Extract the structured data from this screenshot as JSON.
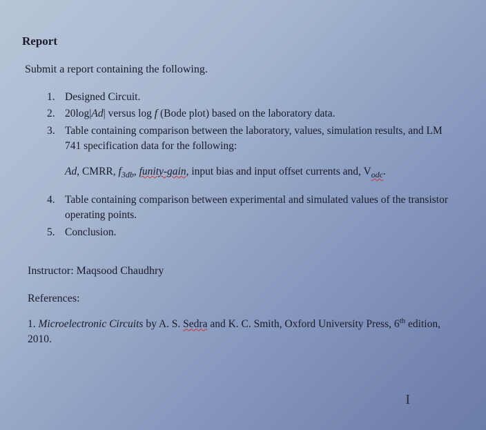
{
  "heading": "Report",
  "intro": "Submit a report containing the following.",
  "items": [
    {
      "num": "1.",
      "text_parts": [
        {
          "t": "Designed Circuit.",
          "style": ""
        }
      ]
    },
    {
      "num": "2.",
      "text_parts": [
        {
          "t": "20log|",
          "style": ""
        },
        {
          "t": "Ad",
          "style": "italic"
        },
        {
          "t": "| versus log ",
          "style": ""
        },
        {
          "t": "f",
          "style": "italic"
        },
        {
          "t": " (Bode plot) based on the laboratory data.",
          "style": ""
        }
      ]
    },
    {
      "num": "3.",
      "text_parts": [
        {
          "t": "Table containing comparison between the laboratory, values, simulation results, and LM 741 specification data for the following:",
          "style": ""
        }
      ]
    }
  ],
  "subline_parts": [
    {
      "t": "Ad",
      "style": "italic"
    },
    {
      "t": ", CMRR, ",
      "style": ""
    },
    {
      "t": "f",
      "style": "italic"
    },
    {
      "t": "3db",
      "style": "sub-italic"
    },
    {
      "t": ", ",
      "style": ""
    },
    {
      "t": "funity-gain",
      "style": "italic red-underline"
    },
    {
      "t": ", input bias and input offset currents and, V",
      "style": ""
    },
    {
      "t": "odc",
      "style": "sub-italic red-underline"
    },
    {
      "t": ".",
      "style": ""
    }
  ],
  "items2": [
    {
      "num": "4.",
      "text_parts": [
        {
          "t": "Table containing comparison between experimental and simulated values of the transistor operating points.",
          "style": ""
        }
      ]
    },
    {
      "num": "5.",
      "text_parts": [
        {
          "t": "Conclusion.",
          "style": ""
        }
      ]
    }
  ],
  "instructor_label": "Instructor: ",
  "instructor_name": "Maqsood Chaudhry",
  "references_label": "References:",
  "reference_parts": [
    {
      "t": "1. ",
      "style": ""
    },
    {
      "t": "Microelectronic Circuits",
      "style": "italic"
    },
    {
      "t": " by A. S. ",
      "style": ""
    },
    {
      "t": "Sedra",
      "style": "red-underline"
    },
    {
      "t": " and K. C. Smith, Oxford University Press, 6",
      "style": ""
    },
    {
      "t": "th",
      "style": "sup"
    },
    {
      "t": " edition, 2010.",
      "style": ""
    }
  ],
  "cursor": "I"
}
